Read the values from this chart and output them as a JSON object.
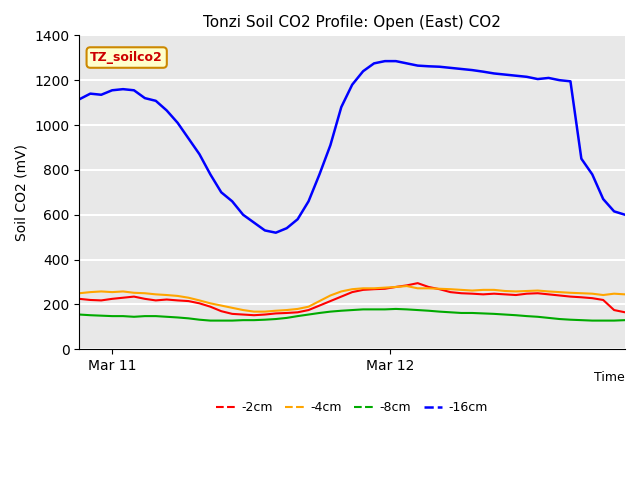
{
  "title": "Tonzi Soil CO2 Profile: Open (East) CO2",
  "ylabel": "Soil CO2 (mV)",
  "xlabel": "Time",
  "xlim": [
    0,
    1
  ],
  "ylim": [
    0,
    1400
  ],
  "yticks": [
    0,
    200,
    400,
    600,
    800,
    1000,
    1200,
    1400
  ],
  "xtick_labels": [
    "Mar 11",
    "Mar 12"
  ],
  "xtick_positions": [
    0.06,
    0.57
  ],
  "legend_labels": [
    "-2cm",
    "-4cm",
    "-8cm",
    "-16cm"
  ],
  "legend_colors": [
    "#ff0000",
    "#ffa500",
    "#00aa00",
    "#0000ff"
  ],
  "label_box_text": "TZ_soilco2",
  "label_box_facecolor": "#ffffcc",
  "label_box_edgecolor": "#cc8800",
  "label_box_textcolor": "#cc0000",
  "bg_color": "#e8e8e8",
  "grid_color": "#ffffff",
  "series_2cm_x": [
    0.0,
    0.02,
    0.04,
    0.06,
    0.08,
    0.1,
    0.12,
    0.14,
    0.16,
    0.18,
    0.2,
    0.22,
    0.24,
    0.26,
    0.28,
    0.3,
    0.32,
    0.34,
    0.36,
    0.38,
    0.4,
    0.42,
    0.44,
    0.46,
    0.48,
    0.5,
    0.52,
    0.54,
    0.56,
    0.58,
    0.6,
    0.62,
    0.64,
    0.66,
    0.68,
    0.7,
    0.72,
    0.74,
    0.76,
    0.78,
    0.8,
    0.82,
    0.84,
    0.86,
    0.88,
    0.9,
    0.92,
    0.94,
    0.96,
    0.98,
    1.0
  ],
  "series_2cm_y": [
    225,
    220,
    218,
    225,
    230,
    235,
    225,
    218,
    222,
    218,
    215,
    205,
    190,
    170,
    158,
    155,
    152,
    155,
    160,
    162,
    165,
    175,
    195,
    215,
    235,
    255,
    265,
    268,
    270,
    278,
    285,
    295,
    278,
    268,
    255,
    250,
    248,
    245,
    248,
    245,
    242,
    248,
    250,
    245,
    240,
    235,
    232,
    228,
    220,
    175,
    165
  ],
  "series_4cm_x": [
    0.0,
    0.02,
    0.04,
    0.06,
    0.08,
    0.1,
    0.12,
    0.14,
    0.16,
    0.18,
    0.2,
    0.22,
    0.24,
    0.26,
    0.28,
    0.3,
    0.32,
    0.34,
    0.36,
    0.38,
    0.4,
    0.42,
    0.44,
    0.46,
    0.48,
    0.5,
    0.52,
    0.54,
    0.56,
    0.58,
    0.6,
    0.62,
    0.64,
    0.66,
    0.68,
    0.7,
    0.72,
    0.74,
    0.76,
    0.78,
    0.8,
    0.82,
    0.84,
    0.86,
    0.88,
    0.9,
    0.92,
    0.94,
    0.96,
    0.98,
    1.0
  ],
  "series_4cm_y": [
    250,
    255,
    258,
    255,
    258,
    252,
    250,
    245,
    242,
    238,
    230,
    218,
    205,
    195,
    185,
    175,
    168,
    168,
    172,
    175,
    180,
    190,
    215,
    240,
    258,
    268,
    272,
    272,
    275,
    278,
    282,
    272,
    272,
    270,
    268,
    265,
    262,
    265,
    265,
    260,
    258,
    260,
    262,
    258,
    255,
    252,
    250,
    248,
    242,
    248,
    245
  ],
  "series_8cm_x": [
    0.0,
    0.02,
    0.04,
    0.06,
    0.08,
    0.1,
    0.12,
    0.14,
    0.16,
    0.18,
    0.2,
    0.22,
    0.24,
    0.26,
    0.28,
    0.3,
    0.32,
    0.34,
    0.36,
    0.38,
    0.4,
    0.42,
    0.44,
    0.46,
    0.48,
    0.5,
    0.52,
    0.54,
    0.56,
    0.58,
    0.6,
    0.62,
    0.64,
    0.66,
    0.68,
    0.7,
    0.72,
    0.74,
    0.76,
    0.78,
    0.8,
    0.82,
    0.84,
    0.86,
    0.88,
    0.9,
    0.92,
    0.94,
    0.96,
    0.98,
    1.0
  ],
  "series_8cm_y": [
    155,
    152,
    150,
    148,
    148,
    145,
    148,
    148,
    145,
    142,
    138,
    132,
    128,
    128,
    128,
    130,
    130,
    132,
    135,
    140,
    148,
    155,
    162,
    168,
    172,
    175,
    178,
    178,
    178,
    180,
    178,
    175,
    172,
    168,
    165,
    162,
    162,
    160,
    158,
    155,
    152,
    148,
    145,
    140,
    135,
    132,
    130,
    128,
    128,
    128,
    130
  ],
  "series_16cm_x": [
    0.0,
    0.02,
    0.04,
    0.06,
    0.08,
    0.1,
    0.12,
    0.14,
    0.16,
    0.18,
    0.2,
    0.22,
    0.24,
    0.26,
    0.28,
    0.3,
    0.32,
    0.34,
    0.36,
    0.38,
    0.4,
    0.42,
    0.44,
    0.46,
    0.48,
    0.5,
    0.52,
    0.54,
    0.56,
    0.58,
    0.6,
    0.62,
    0.64,
    0.66,
    0.68,
    0.7,
    0.72,
    0.74,
    0.76,
    0.78,
    0.8,
    0.82,
    0.84,
    0.86,
    0.88,
    0.9,
    0.92,
    0.94,
    0.96,
    0.98,
    1.0
  ],
  "series_16cm_y": [
    1115,
    1140,
    1135,
    1155,
    1160,
    1155,
    1120,
    1108,
    1065,
    1010,
    940,
    870,
    780,
    700,
    660,
    600,
    565,
    530,
    520,
    540,
    580,
    660,
    780,
    910,
    1080,
    1180,
    1240,
    1275,
    1285,
    1285,
    1275,
    1265,
    1262,
    1260,
    1255,
    1250,
    1245,
    1238,
    1230,
    1225,
    1220,
    1215,
    1205,
    1210,
    1200,
    1195,
    850,
    780,
    670,
    615,
    600
  ]
}
